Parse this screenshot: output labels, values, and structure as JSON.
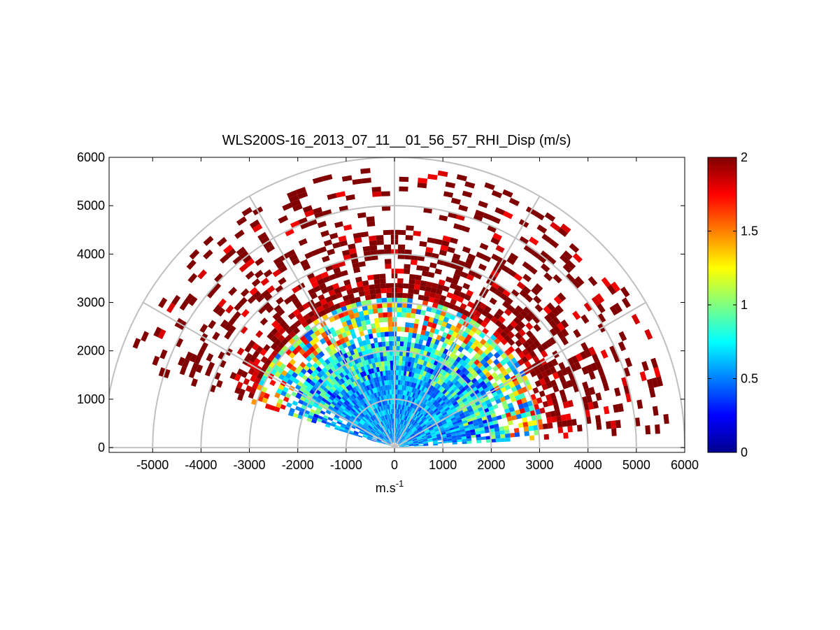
{
  "chart_data": {
    "type": "heatmap",
    "title": "WLS200S-16_2013_07_11__01_56_57_RHI_Disp (m/s)",
    "xlabel": "m.s",
    "xlabel_superscript": "-1",
    "ylabel": "",
    "xlim": [
      -5900,
      6000
    ],
    "ylim": [
      -100,
      6000
    ],
    "xticks": [
      "-5000",
      "-4000",
      "-3000",
      "-2000",
      "-1000",
      "0",
      "1000",
      "2000",
      "3000",
      "4000",
      "5000",
      "6000"
    ],
    "yticks": [
      "0",
      "1000",
      "2000",
      "3000",
      "4000",
      "5000",
      "6000"
    ],
    "colorbar": {
      "colormap": "jet",
      "range": [
        0,
        2
      ],
      "ticks": [
        "0",
        "0.5",
        "1",
        "1.5",
        "2"
      ]
    },
    "polar_grid": {
      "rings_m": [
        1000,
        2000,
        3000,
        4000,
        5000,
        6000
      ],
      "spokes_deg": [
        0,
        30,
        60,
        90,
        120,
        150,
        180
      ]
    },
    "scan": {
      "elevation_min_deg": 3,
      "elevation_max_deg": 162,
      "max_range_m": 5800
    },
    "colors": {
      "grid": "#c0c0c0",
      "axes": "#000000",
      "background": "#ffffff"
    }
  }
}
